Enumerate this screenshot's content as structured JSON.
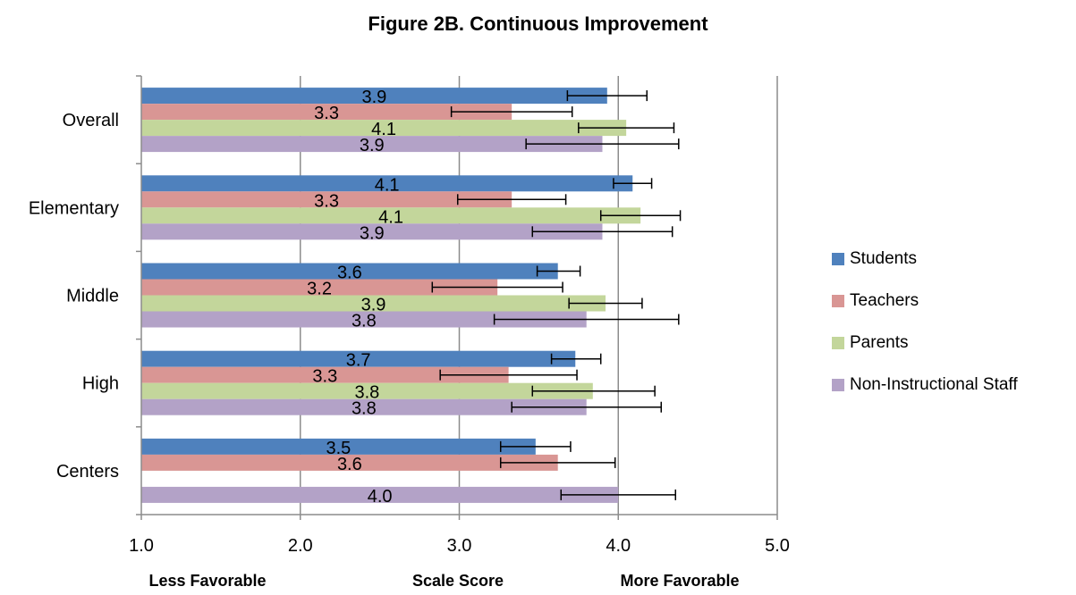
{
  "chart_data": {
    "type": "bar",
    "orientation": "horizontal",
    "title": "Figure 2B. Continuous Improvement",
    "categories": [
      "Overall",
      "Elementary",
      "Middle",
      "High",
      "Centers"
    ],
    "xlim": [
      1.0,
      5.0
    ],
    "x_ticks": [
      "1.0",
      "2.0",
      "3.0",
      "4.0",
      "5.0"
    ],
    "grid": "vertical",
    "legend_position": "right",
    "footer_labels": {
      "left": "Less Favorable",
      "center": "Scale Score",
      "right": "More Favorable"
    },
    "series": [
      {
        "name": "Students",
        "color": "#4f81bd",
        "values": [
          3.93,
          4.09,
          3.62,
          3.73,
          3.48
        ],
        "labels": [
          "3.9",
          "4.1",
          "3.6",
          "3.7",
          "3.5"
        ],
        "error_low": [
          3.68,
          3.97,
          3.49,
          3.58,
          3.26
        ],
        "error_high": [
          4.18,
          4.21,
          3.76,
          3.89,
          3.7
        ]
      },
      {
        "name": "Teachers",
        "color": "#d99694",
        "values": [
          3.33,
          3.33,
          3.24,
          3.31,
          3.62
        ],
        "labels": [
          "3.3",
          "3.3",
          "3.2",
          "3.3",
          "3.6"
        ],
        "error_low": [
          2.95,
          2.99,
          2.83,
          2.88,
          3.26
        ],
        "error_high": [
          3.71,
          3.67,
          3.65,
          3.74,
          3.98
        ]
      },
      {
        "name": "Parents",
        "color": "#c3d69b",
        "values": [
          4.05,
          4.14,
          3.92,
          3.84,
          null
        ],
        "labels": [
          "4.1",
          "4.1",
          "3.9",
          "3.8",
          null
        ],
        "error_low": [
          3.75,
          3.89,
          3.69,
          3.46,
          null
        ],
        "error_high": [
          4.35,
          4.39,
          4.15,
          4.23,
          null
        ]
      },
      {
        "name": "Non-Instructional Staff",
        "color": "#b3a2c7",
        "values": [
          3.9,
          3.9,
          3.8,
          3.8,
          4.0
        ],
        "labels": [
          "3.9",
          "3.9",
          "3.8",
          "3.8",
          "4.0"
        ],
        "error_low": [
          3.42,
          3.46,
          3.22,
          3.33,
          3.64
        ],
        "error_high": [
          4.38,
          4.34,
          4.38,
          4.27,
          4.36
        ]
      }
    ]
  }
}
